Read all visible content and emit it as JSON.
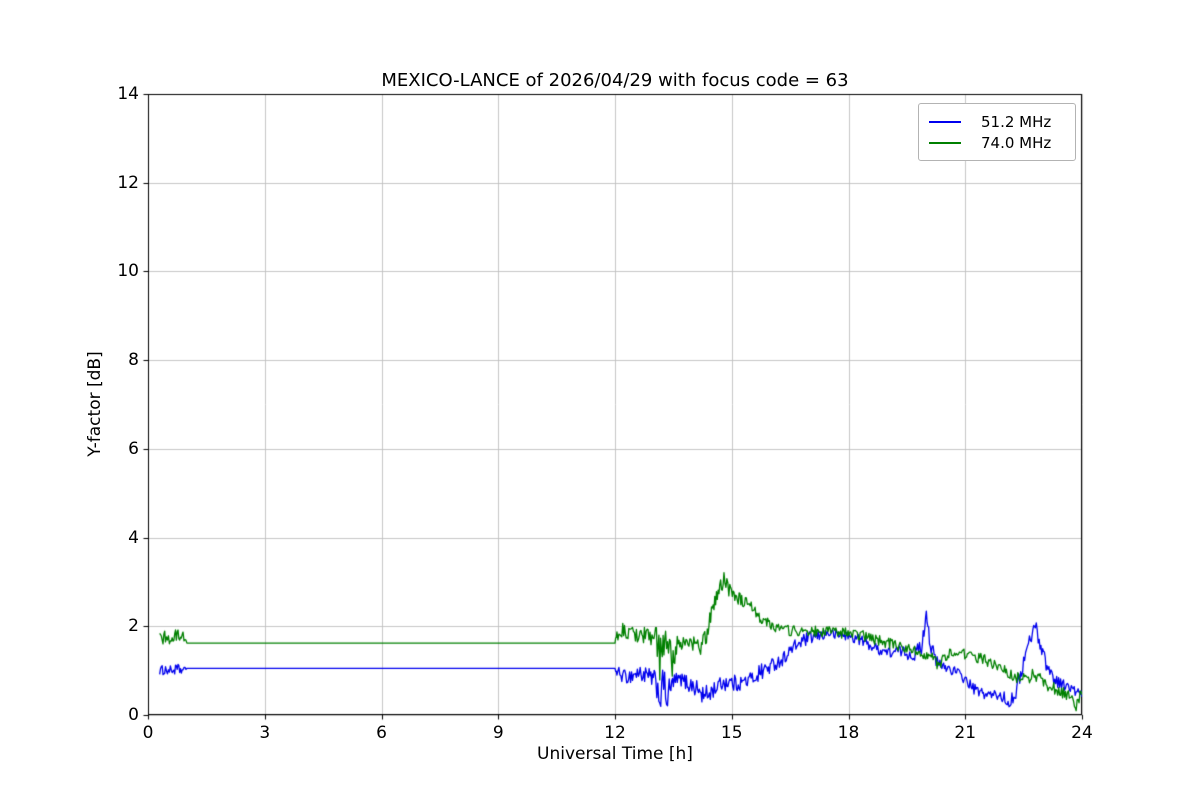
{
  "chart_data": {
    "type": "line",
    "title": "MEXICO-LANCE of 2026/04/29 with focus code = 63",
    "xlabel": "Universal Time [h]",
    "ylabel": "Y-factor [dB]",
    "xlim": [
      0,
      24
    ],
    "ylim": [
      0,
      14
    ],
    "xticks": [
      "0",
      "3",
      "6",
      "9",
      "12",
      "15",
      "18",
      "21",
      "24"
    ],
    "yticks": [
      "0",
      "2",
      "4",
      "6",
      "8",
      "10",
      "12",
      "14"
    ],
    "grid": true,
    "legend_position": "upper right",
    "series": [
      {
        "name": "51.2 MHz",
        "color": "#0000ee",
        "points": [
          [
            0.3,
            1.0,
            0.1
          ],
          [
            0.45,
            1.02,
            0.12
          ],
          [
            0.6,
            1.0,
            0.1
          ],
          [
            0.75,
            1.03,
            0.12
          ],
          [
            0.9,
            1.0,
            0.1
          ],
          [
            1.0,
            1.05,
            0.0
          ],
          [
            12.0,
            1.05,
            0.0
          ],
          [
            12.05,
            0.95,
            0.15
          ],
          [
            12.3,
            0.85,
            0.15
          ],
          [
            12.6,
            0.95,
            0.2
          ],
          [
            12.9,
            0.85,
            0.2
          ],
          [
            13.05,
            0.75,
            0.25
          ],
          [
            13.15,
            0.45,
            0.45
          ],
          [
            13.25,
            0.7,
            0.35
          ],
          [
            13.35,
            0.4,
            0.4
          ],
          [
            13.5,
            0.75,
            0.2
          ],
          [
            13.7,
            0.8,
            0.15
          ],
          [
            13.9,
            0.7,
            0.2
          ],
          [
            14.1,
            0.6,
            0.2
          ],
          [
            14.3,
            0.4,
            0.25
          ],
          [
            14.5,
            0.55,
            0.2
          ],
          [
            14.7,
            0.7,
            0.15
          ],
          [
            14.9,
            0.75,
            0.2
          ],
          [
            15.1,
            0.7,
            0.2
          ],
          [
            15.3,
            0.75,
            0.15
          ],
          [
            15.5,
            0.8,
            0.2
          ],
          [
            15.7,
            0.95,
            0.2
          ],
          [
            15.9,
            1.05,
            0.2
          ],
          [
            16.1,
            1.15,
            0.15
          ],
          [
            16.3,
            1.25,
            0.15
          ],
          [
            16.5,
            1.45,
            0.15
          ],
          [
            16.7,
            1.6,
            0.15
          ],
          [
            16.9,
            1.7,
            0.15
          ],
          [
            17.1,
            1.75,
            0.15
          ],
          [
            17.3,
            1.8,
            0.12
          ],
          [
            17.5,
            1.85,
            0.12
          ],
          [
            17.7,
            1.8,
            0.12
          ],
          [
            17.9,
            1.8,
            0.12
          ],
          [
            18.1,
            1.75,
            0.12
          ],
          [
            18.3,
            1.7,
            0.12
          ],
          [
            18.5,
            1.6,
            0.12
          ],
          [
            18.7,
            1.5,
            0.12
          ],
          [
            18.9,
            1.45,
            0.12
          ],
          [
            19.1,
            1.4,
            0.12
          ],
          [
            19.3,
            1.45,
            0.12
          ],
          [
            19.5,
            1.4,
            0.15
          ],
          [
            19.7,
            1.35,
            0.15
          ],
          [
            19.9,
            1.6,
            0.2
          ],
          [
            20.0,
            2.35,
            0.1
          ],
          [
            20.1,
            1.6,
            0.2
          ],
          [
            20.25,
            1.2,
            0.15
          ],
          [
            20.4,
            1.1,
            0.12
          ],
          [
            20.6,
            1.05,
            0.12
          ],
          [
            20.8,
            0.95,
            0.12
          ],
          [
            21.0,
            0.8,
            0.12
          ],
          [
            21.2,
            0.6,
            0.12
          ],
          [
            21.4,
            0.5,
            0.12
          ],
          [
            21.6,
            0.45,
            0.12
          ],
          [
            21.8,
            0.45,
            0.12
          ],
          [
            22.0,
            0.4,
            0.12
          ],
          [
            22.1,
            0.25,
            0.12
          ],
          [
            22.3,
            0.5,
            0.15
          ],
          [
            22.5,
            1.2,
            0.2
          ],
          [
            22.7,
            1.8,
            0.2
          ],
          [
            22.8,
            2.05,
            0.1
          ],
          [
            22.9,
            1.7,
            0.2
          ],
          [
            23.1,
            1.1,
            0.15
          ],
          [
            23.3,
            0.8,
            0.15
          ],
          [
            23.5,
            0.7,
            0.12
          ],
          [
            23.7,
            0.6,
            0.12
          ],
          [
            23.9,
            0.5,
            0.12
          ],
          [
            24.0,
            0.45,
            0.1
          ]
        ]
      },
      {
        "name": "74.0 MHz",
        "color": "#008000",
        "points": [
          [
            0.3,
            1.7,
            0.15
          ],
          [
            0.45,
            1.75,
            0.15
          ],
          [
            0.6,
            1.7,
            0.15
          ],
          [
            0.75,
            1.8,
            0.15
          ],
          [
            0.9,
            1.8,
            0.12
          ],
          [
            1.0,
            1.62,
            0.0
          ],
          [
            12.0,
            1.62,
            0.0
          ],
          [
            12.05,
            1.8,
            0.2
          ],
          [
            12.2,
            1.9,
            0.25
          ],
          [
            12.4,
            1.8,
            0.2
          ],
          [
            12.6,
            1.85,
            0.2
          ],
          [
            12.8,
            1.8,
            0.2
          ],
          [
            13.0,
            1.8,
            0.25
          ],
          [
            13.15,
            1.3,
            0.6
          ],
          [
            13.3,
            1.7,
            0.3
          ],
          [
            13.45,
            1.2,
            0.5
          ],
          [
            13.6,
            1.6,
            0.2
          ],
          [
            13.8,
            1.65,
            0.15
          ],
          [
            14.0,
            1.6,
            0.2
          ],
          [
            14.2,
            1.5,
            0.25
          ],
          [
            14.35,
            1.8,
            0.2
          ],
          [
            14.5,
            2.4,
            0.2
          ],
          [
            14.65,
            2.8,
            0.2
          ],
          [
            14.8,
            3.05,
            0.2
          ],
          [
            14.95,
            2.85,
            0.2
          ],
          [
            15.1,
            2.7,
            0.15
          ],
          [
            15.3,
            2.55,
            0.15
          ],
          [
            15.5,
            2.4,
            0.15
          ],
          [
            15.7,
            2.25,
            0.15
          ],
          [
            15.9,
            2.1,
            0.15
          ],
          [
            16.1,
            2.0,
            0.12
          ],
          [
            16.3,
            1.95,
            0.12
          ],
          [
            16.5,
            1.9,
            0.12
          ],
          [
            16.7,
            1.9,
            0.12
          ],
          [
            16.9,
            1.85,
            0.12
          ],
          [
            17.1,
            1.9,
            0.12
          ],
          [
            17.3,
            1.85,
            0.12
          ],
          [
            17.5,
            1.9,
            0.12
          ],
          [
            17.7,
            1.85,
            0.12
          ],
          [
            17.9,
            1.85,
            0.12
          ],
          [
            18.1,
            1.8,
            0.12
          ],
          [
            18.3,
            1.8,
            0.12
          ],
          [
            18.5,
            1.75,
            0.12
          ],
          [
            18.7,
            1.7,
            0.12
          ],
          [
            18.9,
            1.65,
            0.12
          ],
          [
            19.1,
            1.6,
            0.12
          ],
          [
            19.3,
            1.55,
            0.12
          ],
          [
            19.5,
            1.5,
            0.12
          ],
          [
            19.7,
            1.45,
            0.12
          ],
          [
            19.9,
            1.4,
            0.12
          ],
          [
            20.1,
            1.35,
            0.12
          ],
          [
            20.3,
            1.1,
            0.15
          ],
          [
            20.5,
            1.35,
            0.12
          ],
          [
            20.7,
            1.4,
            0.12
          ],
          [
            20.9,
            1.4,
            0.12
          ],
          [
            21.1,
            1.35,
            0.12
          ],
          [
            21.3,
            1.3,
            0.12
          ],
          [
            21.5,
            1.25,
            0.12
          ],
          [
            21.7,
            1.15,
            0.12
          ],
          [
            21.9,
            1.05,
            0.12
          ],
          [
            22.1,
            0.95,
            0.12
          ],
          [
            22.3,
            0.85,
            0.15
          ],
          [
            22.5,
            0.8,
            0.15
          ],
          [
            22.7,
            0.9,
            0.15
          ],
          [
            22.9,
            0.85,
            0.15
          ],
          [
            23.1,
            0.7,
            0.15
          ],
          [
            23.3,
            0.6,
            0.15
          ],
          [
            23.5,
            0.5,
            0.15
          ],
          [
            23.7,
            0.4,
            0.15
          ],
          [
            23.85,
            0.2,
            0.12
          ],
          [
            24.0,
            0.5,
            0.15
          ]
        ]
      }
    ]
  },
  "colors": {
    "grid": "#c0c0c0",
    "axis": "#000000",
    "background": "#ffffff",
    "legend_border": "#b3b3b3"
  }
}
